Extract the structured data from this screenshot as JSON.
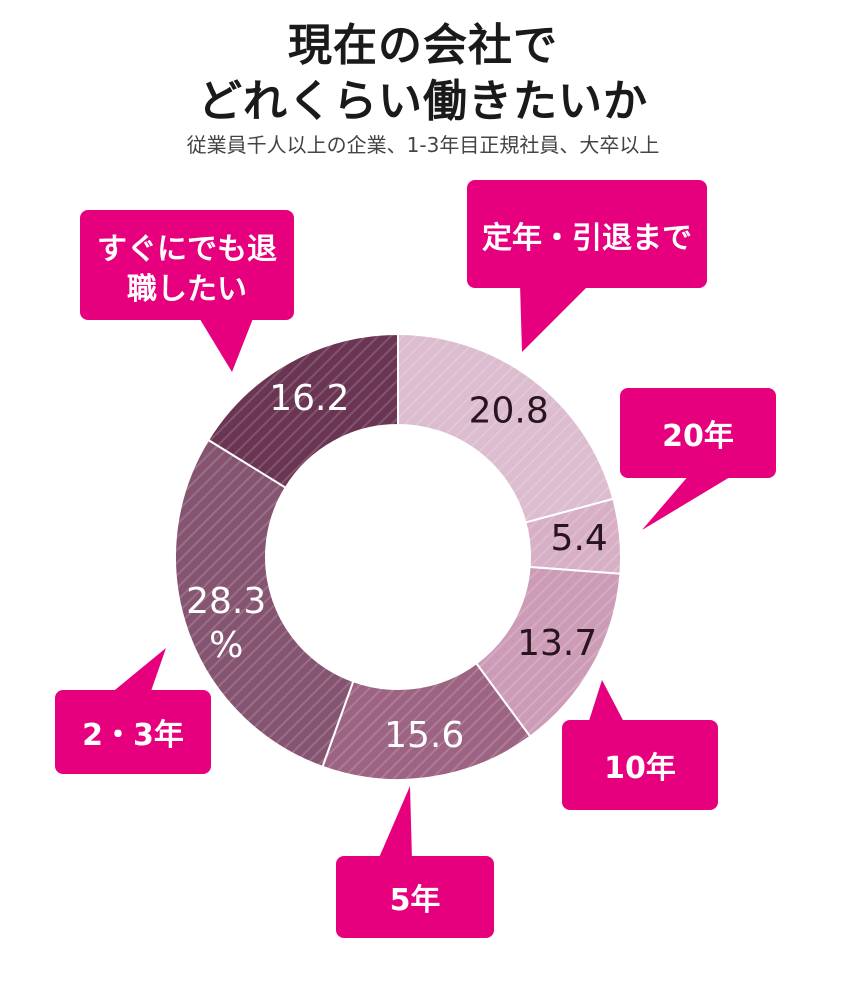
{
  "header": {
    "title_line1": "現在の会社で",
    "title_line2": "どれくらい働きたいか",
    "subtitle": "従業員千人以上の企業、1-3年目正規社員、大卒以上"
  },
  "chart_data": {
    "type": "pie",
    "title": "現在の会社でどれくらい働きたいか",
    "subtitle": "従業員千人以上の企業、1-3年目正規社員、大卒以上",
    "unit": "%",
    "slices": [
      {
        "category": "定年・引退まで",
        "value": 20.8,
        "label": "20.8",
        "color": "#dcbccf"
      },
      {
        "category": "20年",
        "value": 5.4,
        "label": "5.4",
        "color": "#d8b0c6"
      },
      {
        "category": "10年",
        "value": 13.7,
        "label": "13.7",
        "color": "#cc9bb6"
      },
      {
        "category": "5年",
        "value": 15.6,
        "label": "15.6",
        "color": "#9c6383"
      },
      {
        "category": "2・3年",
        "value": 28.3,
        "label": "28.3",
        "unit_label": "%",
        "color": "#855470"
      },
      {
        "category": "すぐにでも退職したい",
        "value": 16.2,
        "label": "16.2",
        "color": "#6a3553"
      }
    ],
    "callout_color": "#e6007e"
  }
}
